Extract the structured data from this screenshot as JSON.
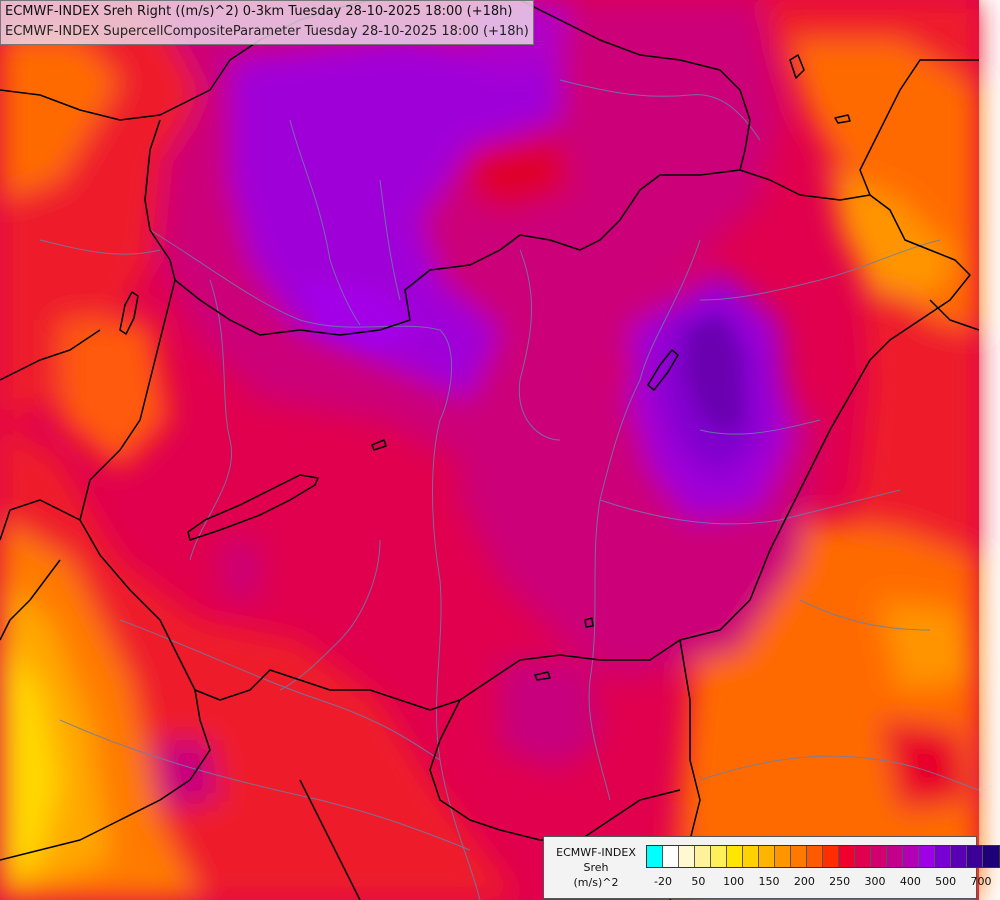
{
  "titles": {
    "line1": "ECMWF-INDEX Sreh Right ((m/s)^2) 0-3km Tuesday 28-10-2025 18:00 (+18h)",
    "line2": "ECMWF-INDEX SupercellCompositeParameter Tuesday 28-10-2025 18:00 (+18h)"
  },
  "legend": {
    "title_line1": "ECMWF-INDEX",
    "title_line2": "Sreh",
    "title_line3": "(m/s)^2",
    "colors": [
      "#00ffff",
      "#ffffff",
      "#fff8d0",
      "#fff29a",
      "#fff05a",
      "#ffe600",
      "#ffd200",
      "#ffb400",
      "#ff9600",
      "#ff7800",
      "#ff5a00",
      "#ff2d00",
      "#f0002d",
      "#e10050",
      "#d2006e",
      "#c3008c",
      "#b400b4",
      "#a000e6",
      "#7800d2",
      "#5a00b4",
      "#3c0096",
      "#1e0078"
    ],
    "tick_labels": [
      "-20",
      "50",
      "100",
      "150",
      "200",
      "250",
      "300",
      "400",
      "500",
      "700"
    ]
  },
  "palette": {
    "dark_red": "#d9002a",
    "red": "#ee1c2c",
    "crimson": "#e0004e",
    "magenta": "#cc0078",
    "purple_magenta": "#b0009c",
    "violet": "#a000d8",
    "deep_violet": "#8000cc",
    "indigo": "#6a00b0",
    "orange_red": "#ff3a1a",
    "orange": "#ff6a00",
    "light_orange": "#ff9000",
    "amber": "#ffb000",
    "yellow": "#ffd800"
  }
}
